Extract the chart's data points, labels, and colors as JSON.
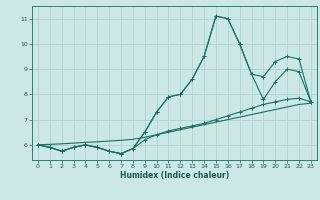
{
  "xlabel": "Humidex (Indice chaleur)",
  "bg_color": "#cce8e4",
  "grid_color": "#aacfcb",
  "line_color": "#1a7060",
  "x_hours": [
    0,
    1,
    2,
    3,
    4,
    5,
    6,
    7,
    8,
    9,
    10,
    11,
    12,
    13,
    14,
    15,
    16,
    17,
    18,
    19,
    20,
    21,
    22,
    23
  ],
  "line_main": [
    6.0,
    5.9,
    5.75,
    5.9,
    6.0,
    5.9,
    5.75,
    5.65,
    5.85,
    6.5,
    7.3,
    7.9,
    8.0,
    8.6,
    9.5,
    11.1,
    11.0,
    10.0,
    8.8,
    7.8,
    8.5,
    9.0,
    8.9,
    7.7
  ],
  "line_upper": [
    6.0,
    5.9,
    5.75,
    5.9,
    6.0,
    5.9,
    5.75,
    5.65,
    5.85,
    6.5,
    7.3,
    7.9,
    8.0,
    8.6,
    9.5,
    11.1,
    11.0,
    10.0,
    8.8,
    8.7,
    9.3,
    9.5,
    9.4,
    7.7
  ],
  "line_lower": [
    6.0,
    5.9,
    5.75,
    5.9,
    6.0,
    5.9,
    5.75,
    5.65,
    5.85,
    6.2,
    6.4,
    6.55,
    6.65,
    6.75,
    6.85,
    7.0,
    7.15,
    7.3,
    7.45,
    7.6,
    7.7,
    7.8,
    7.85,
    7.7
  ],
  "line_trend": [
    6.0,
    6.02,
    6.04,
    6.07,
    6.1,
    6.12,
    6.15,
    6.18,
    6.22,
    6.3,
    6.4,
    6.5,
    6.6,
    6.7,
    6.8,
    6.9,
    7.0,
    7.1,
    7.2,
    7.3,
    7.4,
    7.5,
    7.6,
    7.65
  ],
  "ylim": [
    5.4,
    11.5
  ],
  "xlim": [
    -0.5,
    23.5
  ],
  "yticks": [
    6,
    7,
    8,
    9,
    10,
    11
  ],
  "xticks": [
    0,
    1,
    2,
    3,
    4,
    5,
    6,
    7,
    8,
    9,
    10,
    11,
    12,
    13,
    14,
    15,
    16,
    17,
    18,
    19,
    20,
    21,
    22,
    23
  ],
  "figsize": [
    3.2,
    2.0
  ],
  "dpi": 100
}
